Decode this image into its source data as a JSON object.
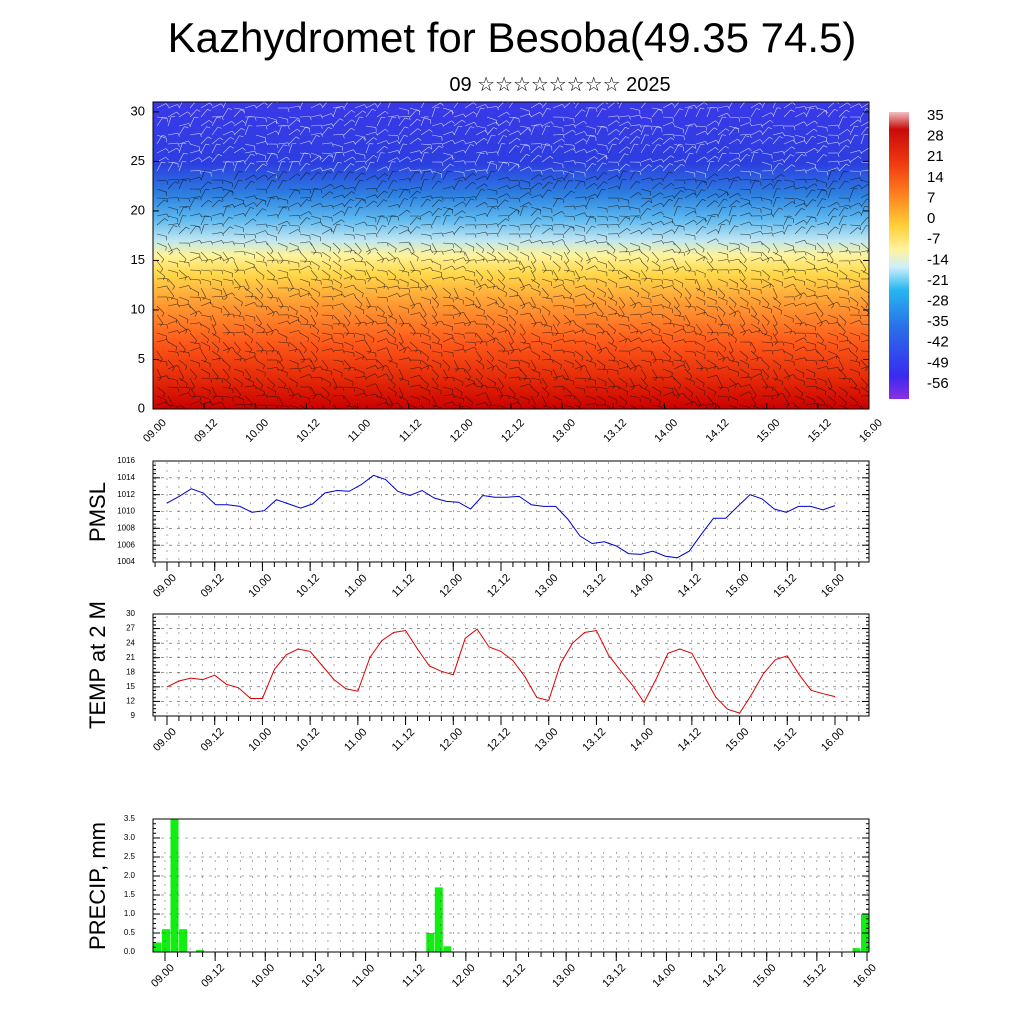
{
  "title": "Kazhydromet for Besoba(49.35 74.5)",
  "subtitle": "09 ☆☆☆☆☆☆☆☆ 2025",
  "chart_data": [
    {
      "type": "heatmap",
      "name": "upper-air-section",
      "x_tick_labels": [
        "09.00",
        "09.12",
        "10.00",
        "10.12",
        "11.00",
        "11.12",
        "12.00",
        "12.12",
        "13.00",
        "13.12",
        "14.00",
        "14.12",
        "15.00",
        "15.12",
        "16.00"
      ],
      "y_ticks": [
        0,
        5,
        10,
        15,
        20,
        25,
        30
      ],
      "ylim": [
        0,
        31
      ],
      "colorbar_labels": [
        "35",
        "28",
        "21",
        "14",
        "7",
        "0",
        "-7",
        "-14",
        "-21",
        "-28",
        "-35",
        "-42",
        "-49",
        "-56"
      ],
      "colors": {
        "warm": "#d01010",
        "mid": "#ffee66",
        "cold": "#2a2ae6"
      },
      "description_overlay": "wind barbs"
    },
    {
      "type": "line",
      "ylabel": "PMSL",
      "ylim": [
        1004,
        1016
      ],
      "y_ticks": [
        1004,
        1006,
        1008,
        1010,
        1012,
        1014,
        1016
      ],
      "x_tick_labels": [
        "09.00",
        "09.12",
        "10.00",
        "10.12",
        "11.00",
        "11.12",
        "12.00",
        "12.12",
        "13.00",
        "13.12",
        "14.00",
        "14.12",
        "15.00",
        "15.12",
        "16.00"
      ],
      "color": "#0000cc",
      "values": [
        1011.0,
        1011.8,
        1012.7,
        1012.2,
        1010.8,
        1010.8,
        1010.6,
        1009.9,
        1010.1,
        1011.4,
        1010.9,
        1010.4,
        1010.9,
        1012.2,
        1012.5,
        1012.4,
        1013.2,
        1014.3,
        1013.8,
        1012.4,
        1011.9,
        1012.5,
        1011.6,
        1011.2,
        1011.1,
        1010.3,
        1011.9,
        1011.7,
        1011.7,
        1011.8,
        1010.8,
        1010.6,
        1010.6,
        1009.1,
        1007.1,
        1006.2,
        1006.4,
        1005.9,
        1005.0,
        1004.9,
        1005.3,
        1004.7,
        1004.5,
        1005.3,
        1007.3,
        1009.2,
        1009.2,
        1010.6,
        1012.0,
        1011.5,
        1010.3,
        1009.9,
        1010.6,
        1010.6,
        1010.2,
        1010.7
      ]
    },
    {
      "type": "line",
      "ylabel": "TEMP at 2 M",
      "ylim": [
        9,
        30
      ],
      "y_ticks": [
        9,
        12,
        15,
        18,
        21,
        24,
        27,
        30
      ],
      "x_tick_labels": [
        "09.00",
        "09.12",
        "10.00",
        "10.12",
        "11.00",
        "11.12",
        "12.00",
        "12.12",
        "13.00",
        "13.12",
        "14.00",
        "14.12",
        "15.00",
        "15.12",
        "16.00"
      ],
      "color": "#dd0000",
      "values": [
        15.0,
        16.2,
        16.8,
        16.5,
        17.4,
        15.5,
        14.8,
        12.6,
        12.6,
        18.6,
        21.6,
        22.8,
        22.3,
        19.4,
        16.5,
        14.6,
        14.1,
        21.0,
        24.5,
        26.2,
        26.6,
        22.8,
        19.3,
        18.2,
        17.5,
        25.0,
        26.9,
        23.2,
        22.3,
        20.4,
        17.1,
        12.8,
        12.2,
        19.8,
        24.0,
        26.2,
        26.6,
        21.6,
        18.4,
        15.4,
        11.8,
        16.6,
        21.9,
        22.8,
        21.9,
        17.4,
        12.9,
        10.4,
        9.6,
        13.4,
        17.7,
        20.6,
        21.4,
        17.5,
        14.3,
        13.6,
        13.0
      ]
    },
    {
      "type": "bar",
      "ylabel": "PRECIP, mm",
      "ylim": [
        0,
        3.5
      ],
      "y_ticks": [
        "0.0",
        "0.5",
        "1.0",
        "1.5",
        "2.0",
        "2.5",
        "3.0",
        "3.5"
      ],
      "x_tick_labels": [
        "09.00",
        "09.12",
        "10.00",
        "10.12",
        "11.00",
        "11.12",
        "12.00",
        "12.12",
        "13.00",
        "13.12",
        "14.00",
        "14.12",
        "15.00",
        "15.12",
        "16.00"
      ],
      "color": "#11ee11",
      "values": [
        0.25,
        0.6,
        3.5,
        0.6,
        0.0,
        0.05,
        0,
        0,
        0,
        0,
        0,
        0,
        0,
        0,
        0,
        0,
        0,
        0,
        0,
        0,
        0,
        0,
        0,
        0,
        0,
        0,
        0,
        0,
        0,
        0,
        0.02,
        0,
        0.5,
        1.7,
        0.15,
        0,
        0,
        0,
        0,
        0,
        0,
        0,
        0,
        0,
        0,
        0,
        0,
        0,
        0,
        0,
        0,
        0,
        0,
        0,
        0,
        0,
        0,
        0,
        0,
        0,
        0,
        0,
        0,
        0,
        0,
        0,
        0,
        0,
        0,
        0,
        0,
        0,
        0,
        0,
        0,
        0,
        0,
        0,
        0,
        0,
        0,
        0,
        0.1,
        1.0
      ]
    }
  ]
}
